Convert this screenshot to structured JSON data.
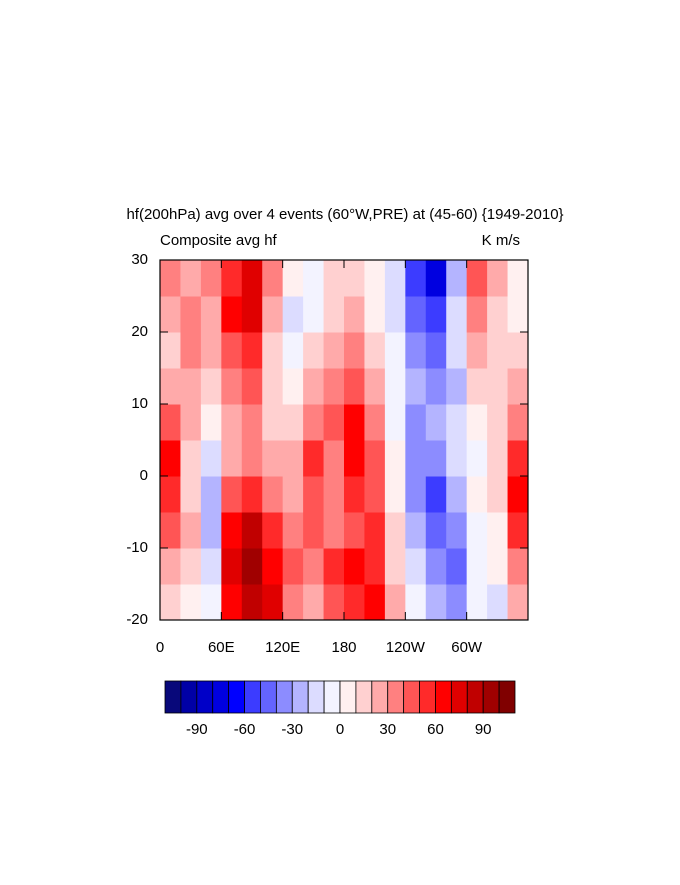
{
  "chart_data": {
    "type": "contour",
    "title": "hf(200hPa) avg over 4 events (60°W,PRE) at (45-60) {1949-2010}",
    "subtitle_left": "Composite avg hf",
    "subtitle_right": "K m/s",
    "x": [
      10,
      30,
      50,
      70,
      90,
      110,
      130,
      150,
      170,
      190,
      210,
      230,
      250,
      270,
      290,
      310,
      330,
      350
    ],
    "y": [
      -17.5,
      -12.5,
      -7.5,
      -2.5,
      2.5,
      7.5,
      12.5,
      17.5,
      22.5,
      27.5
    ],
    "z": [
      [
        10,
        5,
        -10,
        60,
        80,
        70,
        30,
        20,
        40,
        50,
        60,
        20,
        -10,
        -30,
        -40,
        -10,
        -20,
        20
      ],
      [
        20,
        10,
        -20,
        70,
        90,
        60,
        40,
        30,
        50,
        60,
        50,
        10,
        -20,
        -40,
        -50,
        -10,
        0,
        30
      ],
      [
        40,
        20,
        -30,
        60,
        80,
        50,
        30,
        40,
        30,
        40,
        50,
        10,
        -30,
        -50,
        -40,
        -10,
        0,
        50
      ],
      [
        50,
        10,
        -30,
        40,
        50,
        30,
        20,
        40,
        30,
        50,
        40,
        0,
        -40,
        -60,
        -30,
        0,
        10,
        60
      ],
      [
        60,
        10,
        -20,
        20,
        30,
        20,
        20,
        50,
        30,
        60,
        40,
        0,
        -40,
        -40,
        -20,
        -10,
        10,
        50
      ],
      [
        40,
        20,
        0,
        20,
        30,
        10,
        10,
        30,
        40,
        60,
        30,
        -10,
        -40,
        -30,
        -20,
        0,
        10,
        30
      ],
      [
        20,
        20,
        10,
        30,
        40,
        10,
        0,
        20,
        30,
        40,
        20,
        -10,
        -30,
        -40,
        -30,
        10,
        10,
        20
      ],
      [
        10,
        30,
        20,
        40,
        50,
        10,
        -10,
        10,
        20,
        30,
        10,
        -10,
        -40,
        -50,
        -20,
        20,
        10,
        10
      ],
      [
        20,
        30,
        20,
        60,
        70,
        20,
        -20,
        -10,
        10,
        20,
        0,
        -20,
        -50,
        -60,
        -20,
        30,
        10,
        0
      ],
      [
        30,
        20,
        30,
        50,
        70,
        30,
        0,
        -10,
        10,
        10,
        0,
        -20,
        -60,
        -80,
        -30,
        40,
        20,
        0
      ]
    ],
    "xlim": [
      0,
      360
    ],
    "xticks": [
      0,
      {
        "value": 60,
        "label": "60E"
      },
      {
        "value": 120,
        "label": "120E"
      },
      180,
      {
        "value": 240,
        "label": "120W"
      },
      {
        "value": 300,
        "label": "60W"
      }
    ],
    "ylim": [
      -20,
      30
    ],
    "yticks": [
      -20,
      -10,
      0,
      10,
      20,
      30
    ],
    "levels": [
      -100,
      -90,
      -80,
      -70,
      -60,
      -50,
      -40,
      -30,
      -20,
      -10,
      0,
      10,
      20,
      30,
      40,
      50,
      60,
      70,
      80,
      90,
      100
    ],
    "colors": [
      "#08087a",
      "#0000a6",
      "#0000c8",
      "#0000e0",
      "#0000ff",
      "#3c3cff",
      "#6464ff",
      "#8c8cff",
      "#b4b4ff",
      "#dcdcff",
      "#f3f3ff",
      "#fff0f0",
      "#ffd0d0",
      "#ffaaaa",
      "#ff8080",
      "#ff5555",
      "#ff2a2a",
      "#ff0000",
      "#e00000",
      "#c00000",
      "#a00000",
      "#800000"
    ],
    "colorbar_ticks": [
      -90,
      -60,
      -30,
      0,
      30,
      60,
      90
    ]
  }
}
